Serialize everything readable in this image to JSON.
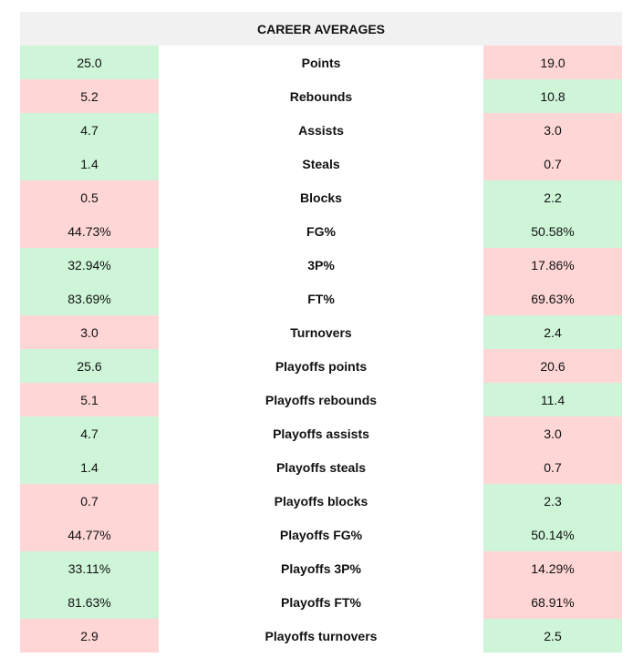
{
  "title": "CAREER AVERAGES",
  "colors": {
    "better": "#cef5d8",
    "worse": "#ffd6d6",
    "header": "#f1f1f1"
  },
  "rows": [
    {
      "stat": "Points",
      "left": "25.0",
      "right": "19.0",
      "left_better": true
    },
    {
      "stat": "Rebounds",
      "left": "5.2",
      "right": "10.8",
      "left_better": false
    },
    {
      "stat": "Assists",
      "left": "4.7",
      "right": "3.0",
      "left_better": true
    },
    {
      "stat": "Steals",
      "left": "1.4",
      "right": "0.7",
      "left_better": true
    },
    {
      "stat": "Blocks",
      "left": "0.5",
      "right": "2.2",
      "left_better": false
    },
    {
      "stat": "FG%",
      "left": "44.73%",
      "right": "50.58%",
      "left_better": false
    },
    {
      "stat": "3P%",
      "left": "32.94%",
      "right": "17.86%",
      "left_better": true
    },
    {
      "stat": "FT%",
      "left": "83.69%",
      "right": "69.63%",
      "left_better": true
    },
    {
      "stat": "Turnovers",
      "left": "3.0",
      "right": "2.4",
      "left_better": false
    },
    {
      "stat": "Playoffs points",
      "left": "25.6",
      "right": "20.6",
      "left_better": true
    },
    {
      "stat": "Playoffs rebounds",
      "left": "5.1",
      "right": "11.4",
      "left_better": false
    },
    {
      "stat": "Playoffs assists",
      "left": "4.7",
      "right": "3.0",
      "left_better": true
    },
    {
      "stat": "Playoffs steals",
      "left": "1.4",
      "right": "0.7",
      "left_better": true
    },
    {
      "stat": "Playoffs blocks",
      "left": "0.7",
      "right": "2.3",
      "left_better": false
    },
    {
      "stat": "Playoffs FG%",
      "left": "44.77%",
      "right": "50.14%",
      "left_better": false
    },
    {
      "stat": "Playoffs 3P%",
      "left": "33.11%",
      "right": "14.29%",
      "left_better": true
    },
    {
      "stat": "Playoffs FT%",
      "left": "81.63%",
      "right": "68.91%",
      "left_better": true
    },
    {
      "stat": "Playoffs turnovers",
      "left": "2.9",
      "right": "2.5",
      "left_better": false
    }
  ]
}
